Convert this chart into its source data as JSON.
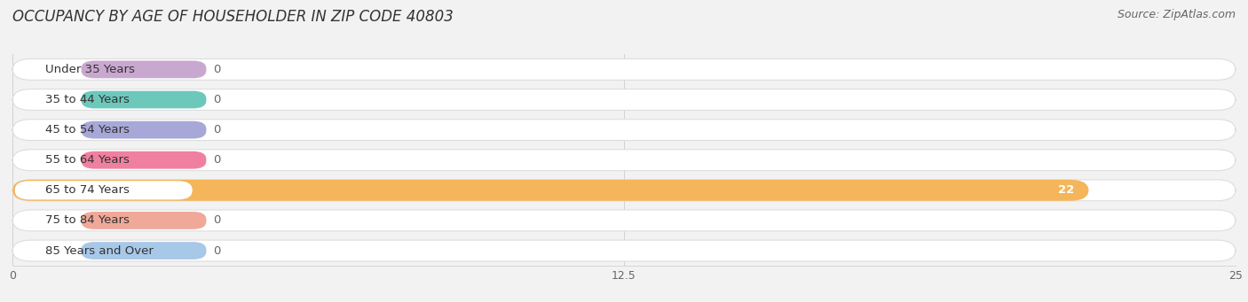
{
  "title": "OCCUPANCY BY AGE OF HOUSEHOLDER IN ZIP CODE 40803",
  "source": "Source: ZipAtlas.com",
  "categories": [
    "Under 35 Years",
    "35 to 44 Years",
    "45 to 54 Years",
    "55 to 64 Years",
    "65 to 74 Years",
    "75 to 84 Years",
    "85 Years and Over"
  ],
  "values": [
    0,
    0,
    0,
    0,
    22,
    0,
    0
  ],
  "bar_colors": [
    "#c9a8d0",
    "#6dc8bc",
    "#a8a8d8",
    "#f080a0",
    "#f5b55a",
    "#f0a898",
    "#a8c8e8"
  ],
  "xlim": [
    0,
    25
  ],
  "xticks": [
    0,
    12.5,
    25
  ],
  "background_color": "#f2f2f2",
  "row_bg_color": "#ffffff",
  "value_color_normal": "#666666",
  "value_color_highlight": "#ffffff",
  "title_fontsize": 12,
  "source_fontsize": 9,
  "label_fontsize": 9.5,
  "tick_fontsize": 9
}
